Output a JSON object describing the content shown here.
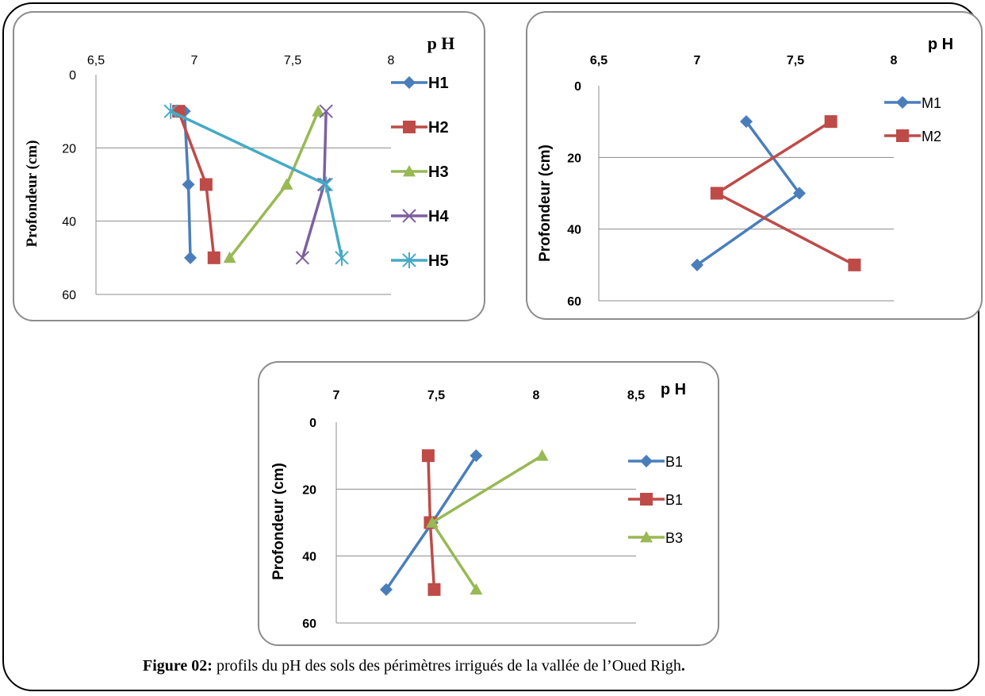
{
  "figure": {
    "caption_label": "Figure 02:",
    "caption_text": " profils du pH des sols des périmètres irrigués de la vallée de l’Oued Righ",
    "caption_end": "."
  },
  "chart_data": [
    {
      "type": "line",
      "x_axis_position": "top",
      "xlabel": "p H",
      "ylabel": "Profondeur (cm)",
      "xlim": [
        6.5,
        8
      ],
      "ylim": [
        0,
        60
      ],
      "y_inverted": true,
      "xticks": [
        "6,5",
        "7",
        "7,5",
        "8"
      ],
      "yticks": [
        "0",
        "20",
        "40",
        "60"
      ],
      "grid": true,
      "legend": "right",
      "series": [
        {
          "name": "H1",
          "marker": "diamond",
          "color": "#4a7ebb",
          "x": [
            6.95,
            6.97,
            6.98
          ],
          "y": [
            10,
            30,
            50
          ]
        },
        {
          "name": "H2",
          "marker": "square",
          "color": "#be4b48",
          "x": [
            6.92,
            7.06,
            7.1
          ],
          "y": [
            10,
            30,
            50
          ]
        },
        {
          "name": "H3",
          "marker": "triangle",
          "color": "#98b954",
          "x": [
            7.63,
            7.47,
            7.18
          ],
          "y": [
            10,
            30,
            50
          ]
        },
        {
          "name": "H4",
          "marker": "x",
          "color": "#7d60a0",
          "x": [
            7.67,
            7.66,
            7.55
          ],
          "y": [
            10,
            30,
            50
          ]
        },
        {
          "name": "H5",
          "marker": "star",
          "color": "#46aac5",
          "x": [
            6.88,
            7.67,
            7.75
          ],
          "y": [
            10,
            30,
            50
          ]
        }
      ]
    },
    {
      "type": "line",
      "x_axis_position": "top",
      "xlabel": "p H",
      "ylabel": "Profondeur (cm)",
      "xlim": [
        6.5,
        8
      ],
      "ylim": [
        0,
        60
      ],
      "y_inverted": true,
      "xticks": [
        "6,5",
        "7",
        "7,5",
        "8"
      ],
      "yticks": [
        "0",
        "20",
        "40",
        "60"
      ],
      "grid": true,
      "legend": "top-right",
      "series": [
        {
          "name": "M1",
          "marker": "diamond",
          "color": "#4a7ebb",
          "x": [
            7.25,
            7.52,
            7.0
          ],
          "y": [
            10,
            30,
            50
          ]
        },
        {
          "name": "M2",
          "marker": "square",
          "color": "#be4b48",
          "x": [
            7.68,
            7.1,
            7.8
          ],
          "y": [
            10,
            30,
            50
          ]
        }
      ]
    },
    {
      "type": "line",
      "x_axis_position": "top",
      "xlabel": "p H",
      "ylabel": "Profondeur (cm)",
      "xlim": [
        7,
        8.5
      ],
      "ylim": [
        0,
        60
      ],
      "y_inverted": true,
      "xticks": [
        "7",
        "7,5",
        "8",
        "8,5"
      ],
      "yticks": [
        "0",
        "20",
        "40",
        "60"
      ],
      "grid": true,
      "legend": "right",
      "series": [
        {
          "name": "B1",
          "marker": "diamond",
          "color": "#4a7ebb",
          "x": [
            7.7,
            7.48,
            7.25
          ],
          "y": [
            10,
            30,
            50
          ]
        },
        {
          "name": "B1",
          "marker": "square",
          "color": "#be4b48",
          "x": [
            7.46,
            7.47,
            7.49
          ],
          "y": [
            10,
            30,
            50
          ]
        },
        {
          "name": "B3",
          "marker": "triangle",
          "color": "#98b954",
          "x": [
            8.03,
            7.48,
            7.7
          ],
          "y": [
            10,
            30,
            50
          ]
        }
      ]
    }
  ]
}
